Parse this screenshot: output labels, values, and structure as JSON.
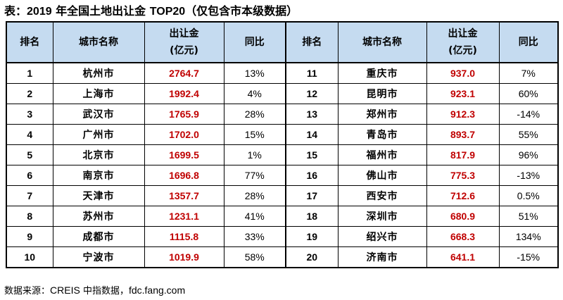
{
  "title": {
    "prefix": "表：",
    "year": "2019",
    "middle": " 年全国土地出让金 ",
    "top": "TOP20",
    "suffix": "（仅包含市本级数据）"
  },
  "table": {
    "headers": {
      "rank": "排名",
      "city": "城市名称",
      "amount_line1": "出让金",
      "amount_line2": "(亿元)",
      "yoy": "同比"
    },
    "left": [
      {
        "rank": "1",
        "city": "杭州市",
        "amount": "2764.7",
        "yoy": "13%"
      },
      {
        "rank": "2",
        "city": "上海市",
        "amount": "1992.4",
        "yoy": "4%"
      },
      {
        "rank": "3",
        "city": "武汉市",
        "amount": "1765.9",
        "yoy": "28%"
      },
      {
        "rank": "4",
        "city": "广州市",
        "amount": "1702.0",
        "yoy": "15%"
      },
      {
        "rank": "5",
        "city": "北京市",
        "amount": "1699.5",
        "yoy": "1%"
      },
      {
        "rank": "6",
        "city": "南京市",
        "amount": "1696.8",
        "yoy": "77%"
      },
      {
        "rank": "7",
        "city": "天津市",
        "amount": "1357.7",
        "yoy": "28%"
      },
      {
        "rank": "8",
        "city": "苏州市",
        "amount": "1231.1",
        "yoy": "41%"
      },
      {
        "rank": "9",
        "city": "成都市",
        "amount": "1115.8",
        "yoy": "33%"
      },
      {
        "rank": "10",
        "city": "宁波市",
        "amount": "1019.9",
        "yoy": "58%"
      }
    ],
    "right": [
      {
        "rank": "11",
        "city": "重庆市",
        "amount": "937.0",
        "yoy": "7%"
      },
      {
        "rank": "12",
        "city": "昆明市",
        "amount": "923.1",
        "yoy": "60%"
      },
      {
        "rank": "13",
        "city": "郑州市",
        "amount": "912.3",
        "yoy": "-14%"
      },
      {
        "rank": "14",
        "city": "青岛市",
        "amount": "893.7",
        "yoy": "55%"
      },
      {
        "rank": "15",
        "city": "福州市",
        "amount": "817.9",
        "yoy": "96%"
      },
      {
        "rank": "16",
        "city": "佛山市",
        "amount": "775.3",
        "yoy": "-13%"
      },
      {
        "rank": "17",
        "city": "西安市",
        "amount": "712.6",
        "yoy": "0.5%"
      },
      {
        "rank": "18",
        "city": "深圳市",
        "amount": "680.9",
        "yoy": "51%"
      },
      {
        "rank": "19",
        "city": "绍兴市",
        "amount": "668.3",
        "yoy": "134%"
      },
      {
        "rank": "20",
        "city": "济南市",
        "amount": "641.1",
        "yoy": "-15%"
      }
    ]
  },
  "source": {
    "label": "数据来源：",
    "org": "CREIS",
    "name": " 中指数据，",
    "site": "fdc.fang.com"
  },
  "colors": {
    "header_bg": "#c5dbf0",
    "amount_text": "#c00000"
  }
}
